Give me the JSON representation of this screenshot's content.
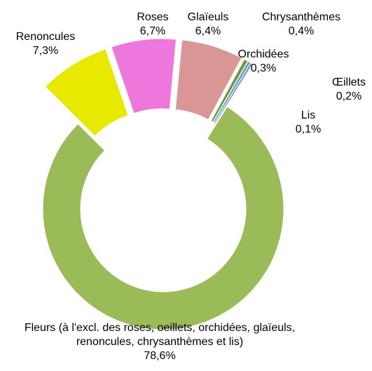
{
  "chart_data": {
    "type": "donut",
    "categories": [
      "Fleurs (à l'excl. des roses, oeillets, orchidées, glaïeuls, renoncules, chrysanthèmes et lis)",
      "Renoncules",
      "Roses",
      "Glaïeuls",
      "Chrysanthèmes",
      "Orchidées",
      "Œillets",
      "Lis"
    ],
    "values": [
      78.6,
      7.3,
      6.7,
      6.4,
      0.4,
      0.3,
      0.2,
      0.1
    ],
    "value_labels": [
      "78,6%",
      "7,3%",
      "6,7%",
      "6,4%",
      "0,4%",
      "0,3%",
      "0,2%",
      "0,1%"
    ],
    "colors": [
      "#9bbb59",
      "#e8e800",
      "#ee77dd",
      "#d99694",
      "#77933c",
      "#4bacc6",
      "#8064a2",
      "#a6a6a6"
    ]
  }
}
